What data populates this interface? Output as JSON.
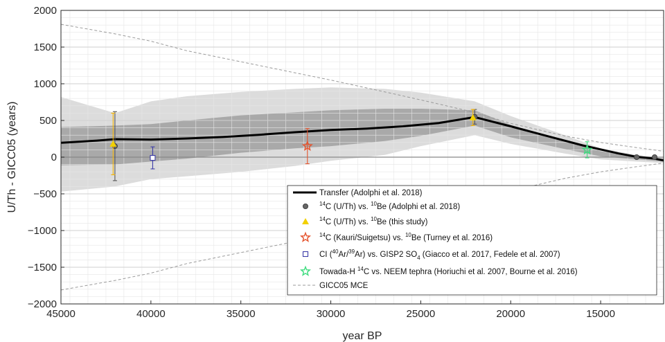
{
  "chart_data": {
    "type": "line",
    "xlabel": "year BP",
    "ylabel": "U/Th - GICC05 (years)",
    "xlim": [
      45000,
      11500
    ],
    "ylim": [
      -2000,
      2000
    ],
    "x_reversed": true,
    "grid": "on (major and minor)",
    "legend_placement": "bottom-right",
    "x_ticks": [
      45000,
      40000,
      35000,
      30000,
      25000,
      20000,
      15000
    ],
    "x_tick_labels": [
      "45000",
      "40000",
      "35000",
      "30000",
      "25000",
      "20000",
      "15000"
    ],
    "y_ticks": [
      2000,
      1500,
      1000,
      500,
      0,
      -500,
      -1000,
      -1500,
      -2000
    ],
    "y_tick_labels": [
      "2000",
      "1500",
      "1000",
      "500",
      "0",
      "−500",
      "−1000",
      "−1500",
      "−2000"
    ],
    "bands": [
      {
        "kind": "outer-uncertainty",
        "color": "#dcdcdc",
        "x": [
          45000,
          42000,
          40000,
          38000,
          35000,
          32000,
          30000,
          27000,
          25000,
          22000,
          20000,
          17000,
          15000,
          13000,
          11500
        ],
        "upper": [
          820,
          600,
          760,
          830,
          890,
          930,
          950,
          930,
          880,
          760,
          560,
          300,
          120,
          30,
          -10
        ],
        "lower": [
          -470,
          -400,
          -300,
          -260,
          -200,
          -120,
          -50,
          30,
          150,
          300,
          180,
          50,
          -30,
          -60,
          -80
        ]
      },
      {
        "kind": "inner-uncertainty",
        "color": "#a9a9a9",
        "x": [
          45000,
          42000,
          40000,
          38000,
          35000,
          32000,
          30000,
          27000,
          25000,
          22000,
          20000,
          17000,
          15000,
          13000,
          11500
        ],
        "upper": [
          410,
          430,
          450,
          500,
          570,
          610,
          640,
          660,
          660,
          640,
          440,
          230,
          80,
          10,
          -20
        ],
        "lower": [
          -110,
          -100,
          -60,
          -20,
          60,
          120,
          150,
          220,
          290,
          430,
          270,
          110,
          10,
          -30,
          -60
        ]
      }
    ],
    "series": [
      {
        "name": "Transfer (Adolphi et al. 2018)",
        "style": "line",
        "color": "#000000",
        "x": [
          45000,
          43000,
          42000,
          40000,
          38000,
          36000,
          34000,
          32000,
          30000,
          28000,
          26000,
          24000,
          22000,
          20000,
          18000,
          16000,
          14000,
          13000,
          12000,
          11500
        ],
        "y": [
          195,
          225,
          245,
          240,
          255,
          275,
          305,
          340,
          370,
          390,
          420,
          465,
          545,
          420,
          290,
          160,
          50,
          5,
          -20,
          -45
        ]
      },
      {
        "name": "14C (U/Th) vs. 10Be (Adolphi et al. 2018)",
        "style": "marker",
        "marker": "circle",
        "color": "#555555",
        "points": [
          {
            "x": 42000,
            "y": 150,
            "err": 470
          },
          {
            "x": 22000,
            "y": 550,
            "err": 100
          },
          {
            "x": 13000,
            "y": 0,
            "err": 0
          },
          {
            "x": 12000,
            "y": 0,
            "err": 0
          }
        ]
      },
      {
        "name": "14C (U/Th) vs. 10Be (this study)",
        "style": "marker",
        "marker": "triangle",
        "color": "#f2d000",
        "err_color": "#f2b200",
        "points": [
          {
            "x": 42100,
            "y": 180,
            "err": 420
          },
          {
            "x": 22100,
            "y": 540,
            "err": 110
          }
        ]
      },
      {
        "name": "14C (Kauri/Suigetsu) vs. 10Be (Turney et al. 2016)",
        "style": "marker",
        "marker": "star",
        "color": "#e5532d",
        "points": [
          {
            "x": 31300,
            "y": 150,
            "err": 240
          }
        ]
      },
      {
        "name": "CI (40Ar/39Ar) vs. GISP2 SO4 (Giacco et al. 2017, Fedele et al. 2007)",
        "style": "marker",
        "marker": "square",
        "color": "#3b3ba8",
        "points": [
          {
            "x": 39900,
            "y": -10,
            "err": 150
          }
        ]
      },
      {
        "name": "Towada-H 14C vs. NEEM tephra (Horiuchi et al. 2007, Bourne et al. 2016)",
        "style": "marker",
        "marker": "star",
        "color": "#3ddc7e",
        "points": [
          {
            "x": 15750,
            "y": 100,
            "err": 110
          }
        ]
      },
      {
        "name": "GICC05 MCE",
        "style": "dashed",
        "color": "#9a9a9a",
        "x": [
          45000,
          42000,
          40000,
          38000,
          35000,
          32000,
          30000,
          27000,
          25000,
          22000,
          20000,
          17000,
          15000,
          13000,
          11500
        ],
        "y": [
          1810,
          1680,
          1580,
          1450,
          1300,
          1150,
          1050,
          890,
          780,
          610,
          460,
          290,
          200,
          130,
          80
        ],
        "mirror": true
      }
    ]
  },
  "legend": {
    "items": [
      {
        "key": "transfer",
        "parts": [
          {
            "t": "Transfer (Adolphi et al. 2018)"
          }
        ]
      },
      {
        "key": "adolphi",
        "parts": [
          {
            "t": "14",
            "sup": true
          },
          {
            "t": "C (U/Th) vs. "
          },
          {
            "t": "10",
            "sup": true
          },
          {
            "t": "Be (Adolphi et al. 2018)"
          }
        ]
      },
      {
        "key": "this",
        "parts": [
          {
            "t": "14",
            "sup": true
          },
          {
            "t": "C (U/Th) vs. "
          },
          {
            "t": "10",
            "sup": true
          },
          {
            "t": "Be (this study)"
          }
        ]
      },
      {
        "key": "turney",
        "parts": [
          {
            "t": "14",
            "sup": true
          },
          {
            "t": "C (Kauri/Suigetsu) vs. "
          },
          {
            "t": "10",
            "sup": true
          },
          {
            "t": "Be (Turney et al. 2016)"
          }
        ]
      },
      {
        "key": "ci",
        "parts": [
          {
            "t": "CI ("
          },
          {
            "t": "40",
            "sup": true
          },
          {
            "t": "Ar/"
          },
          {
            "t": "39",
            "sup": true
          },
          {
            "t": "Ar) vs. GISP2 SO"
          },
          {
            "t": "4",
            "sub": true
          },
          {
            "t": " (Giacco et al. 2017, Fedele et al. 2007)"
          }
        ]
      },
      {
        "key": "towada",
        "parts": [
          {
            "t": "Towada-H "
          },
          {
            "t": "14",
            "sup": true
          },
          {
            "t": "C vs. NEEM tephra (Horiuchi et al. 2007, Bourne et al. 2016)"
          }
        ]
      },
      {
        "key": "mce",
        "parts": [
          {
            "t": "GICC05 MCE"
          }
        ]
      }
    ]
  }
}
